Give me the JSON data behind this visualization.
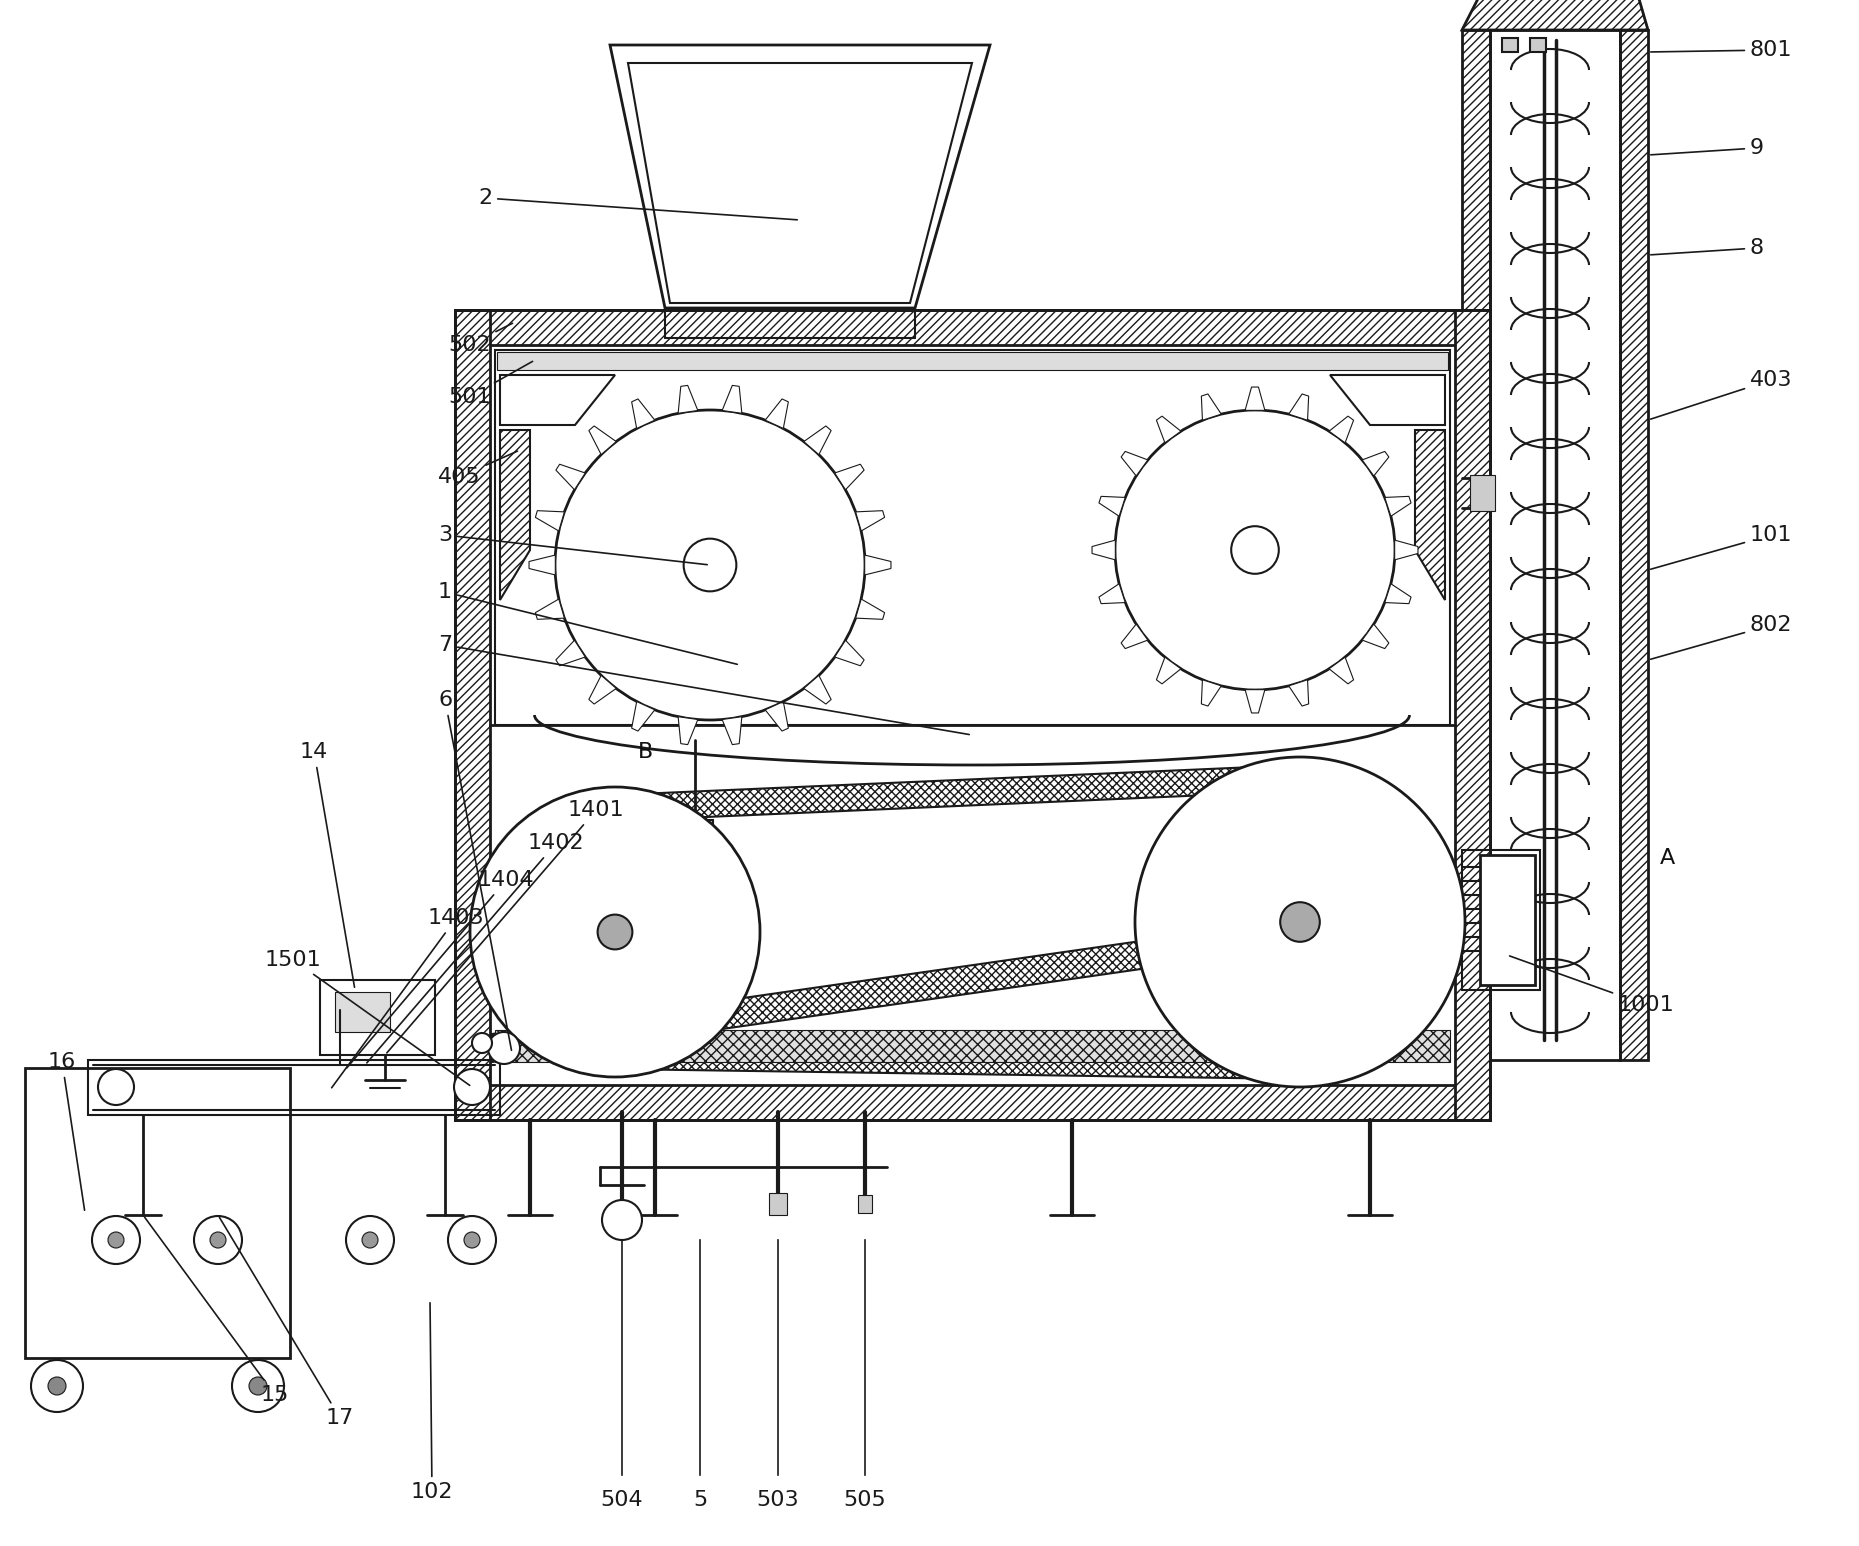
{
  "bg_color": "#ffffff",
  "line_color": "#1a1a1a",
  "label_fontsize": 16,
  "line_width": 1.5
}
